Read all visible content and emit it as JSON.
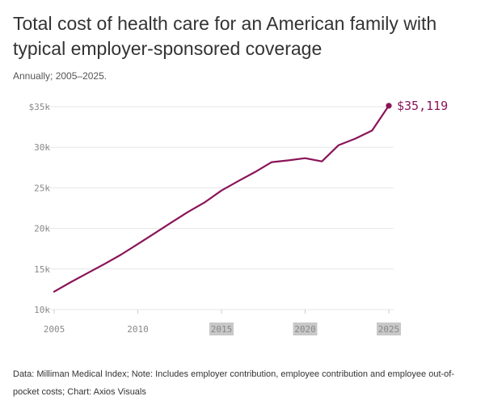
{
  "title": "Total cost of health care for an American family with typical employer-sponsored coverage",
  "subtitle": "Annually; 2005–2025.",
  "footer": "Data: Milliman Medical Index; Note: Includes employer contribution, employee contribution and employee out-of-pocket costs; Chart: Axios Visuals",
  "colors": {
    "line": "#8a1459",
    "grid": "#e6e6e6",
    "tick_highlight": "#c8c8c8"
  },
  "chart_data": {
    "type": "line",
    "title": "Total cost of health care for an American family with typical employer-sponsored coverage",
    "subtitle": "Annually; 2005–2025.",
    "xlabel": "",
    "ylabel": "",
    "xlim": [
      2005,
      2025
    ],
    "ylim": [
      10000,
      35000
    ],
    "grid": true,
    "x_ticks": [
      2005,
      2010,
      2015,
      2020,
      2025
    ],
    "x_tick_labels": [
      "2005",
      "2010",
      "2015",
      "2020",
      "2025"
    ],
    "highlighted_x_ticks": [
      "2015",
      "2020",
      "2025"
    ],
    "y_ticks": [
      10000,
      15000,
      20000,
      25000,
      30000,
      35000
    ],
    "y_tick_labels": [
      "10k",
      "15k",
      "20k",
      "25k",
      "30k",
      "$35k"
    ],
    "series": [
      {
        "x": [
          2005,
          2006,
          2007,
          2008,
          2009,
          2010,
          2011,
          2012,
          2013,
          2014,
          2015,
          2016,
          2017,
          2018,
          2019,
          2020,
          2021,
          2022,
          2023,
          2024,
          2025
        ],
        "values": [
          12214,
          13382,
          14500,
          15609,
          16771,
          18074,
          19393,
          20728,
          22030,
          23215,
          24671,
          25826,
          26944,
          28166,
          28386,
          28653,
          28256,
          30260,
          31065,
          32066,
          35119
        ]
      }
    ],
    "end_label": "$35,119"
  }
}
